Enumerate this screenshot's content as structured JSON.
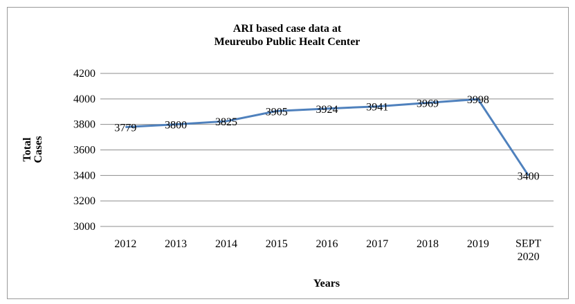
{
  "chart_data": {
    "type": "line",
    "title": [
      "ARI based case data at",
      "Meureubo Public Healt Center"
    ],
    "x_label": "Years",
    "y_label": "Total Cases",
    "categories": [
      "2012",
      "2013",
      "2014",
      "2015",
      "2016",
      "2017",
      "2018",
      "2019",
      "SEPT 2020"
    ],
    "series": [
      {
        "name": "Total Cases",
        "color": "#4f81bd",
        "values": [
          3779,
          3800,
          3825,
          3905,
          3924,
          3941,
          3969,
          3998,
          3400
        ]
      }
    ],
    "ylim": [
      3000,
      4200
    ],
    "yticks": [
      3000,
      3200,
      3400,
      3600,
      3800,
      4000,
      4200
    ],
    "grid": true,
    "legend": false
  }
}
